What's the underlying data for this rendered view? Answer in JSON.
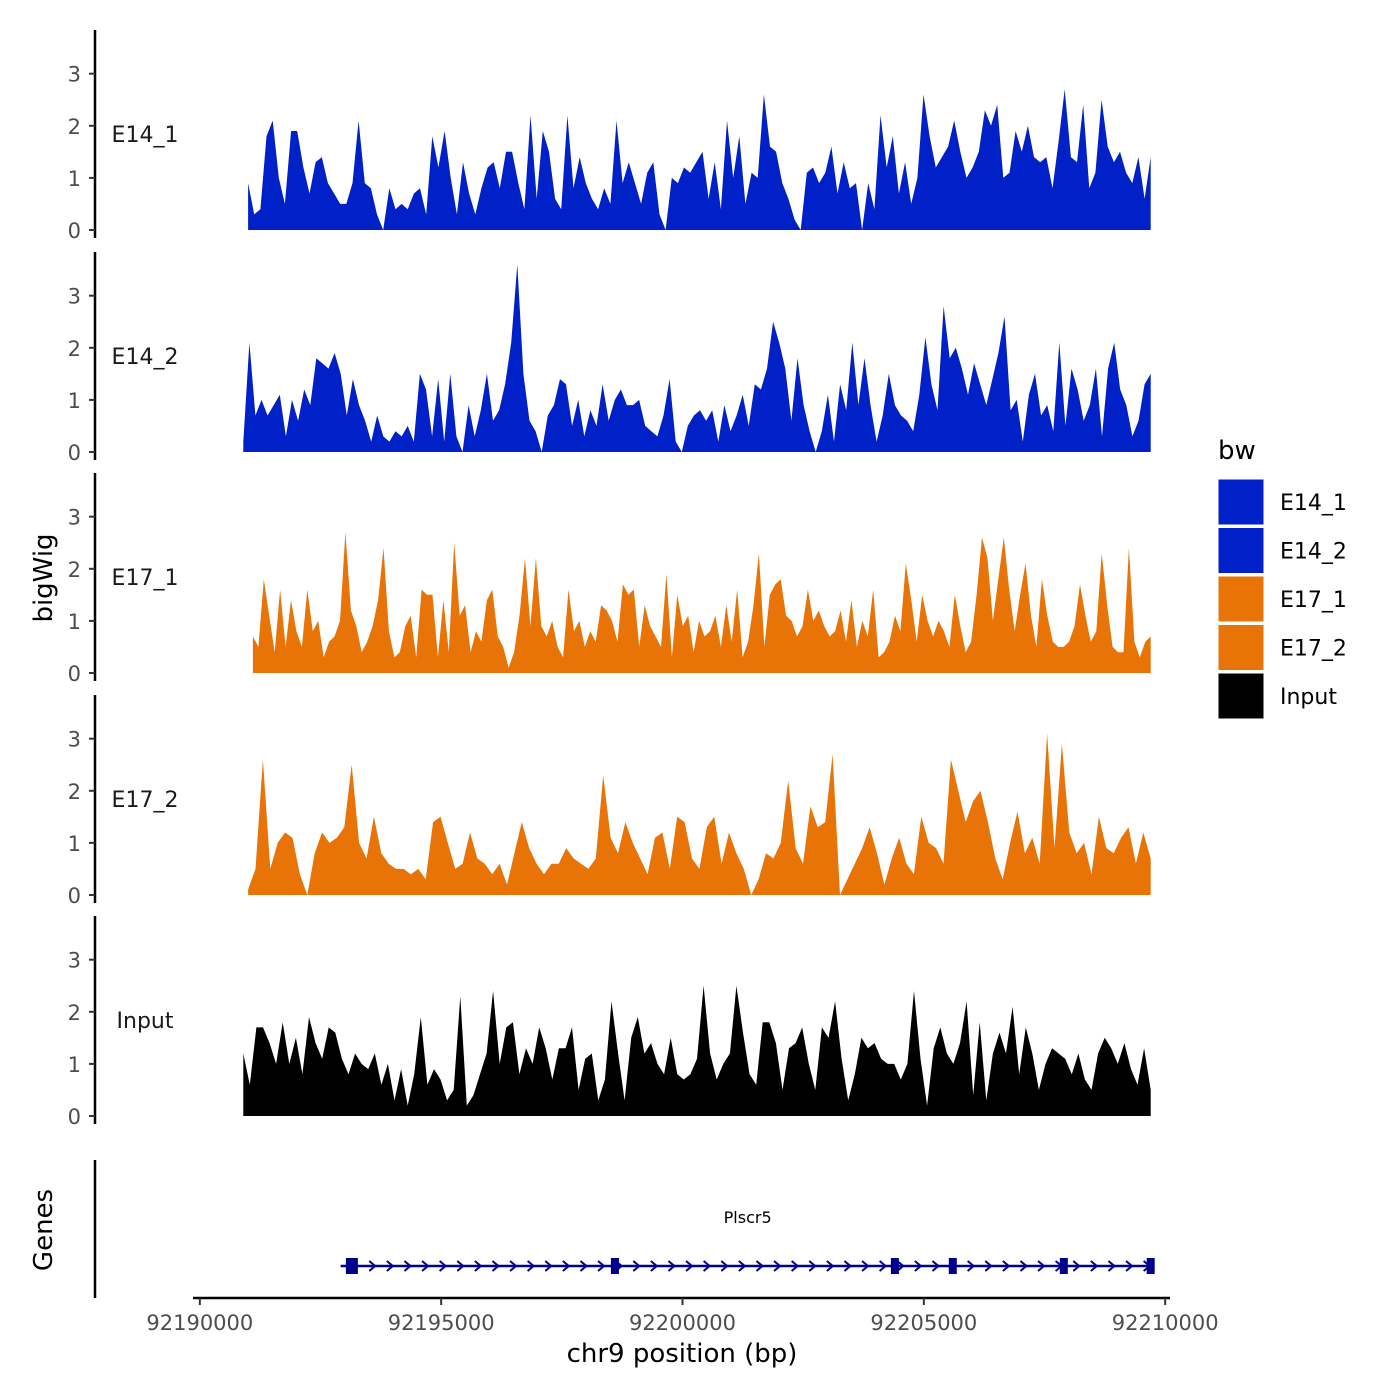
{
  "chart_data": {
    "type": "area",
    "title": "",
    "ylabel": "bigWig",
    "xlabel": "chr9 position (bp)",
    "xlim": [
      92189900,
      92210100
    ],
    "ylim": [
      0,
      3.8
    ],
    "y_ticks": [
      0,
      1,
      2,
      3
    ],
    "x_ticks": [
      92190000,
      92195000,
      92200000,
      92205000,
      92210000
    ],
    "x_tick_labels": [
      "92190000",
      "92195000",
      "92200000",
      "92205000",
      "92210000"
    ],
    "legend": {
      "title": "bw",
      "position": "right",
      "entries": [
        {
          "label": "E14_1",
          "color": "#0020C8"
        },
        {
          "label": "E14_2",
          "color": "#0020C8"
        },
        {
          "label": "E17_1",
          "color": "#E87306"
        },
        {
          "label": "E17_2",
          "color": "#E87306"
        },
        {
          "label": "Input",
          "color": "#000000"
        }
      ]
    },
    "series": [
      {
        "name": "E14_1",
        "color": "#0020C8",
        "x_start": 92191000,
        "x_end": 92209700,
        "values": [
          0.9,
          0.3,
          0.4,
          1.8,
          2.1,
          1.0,
          0.5,
          1.9,
          1.9,
          1.2,
          0.7,
          1.3,
          1.4,
          0.9,
          0.7,
          0.5,
          0.5,
          0.9,
          2.1,
          0.9,
          0.8,
          0.3,
          0,
          0.8,
          0.4,
          0.5,
          0.4,
          0.7,
          0.8,
          0.3,
          1.8,
          1.2,
          1.9,
          1.0,
          0.3,
          1.3,
          0.7,
          0.3,
          0.8,
          1.2,
          1.3,
          0.8,
          1.5,
          1.5,
          0.9,
          0.4,
          2.2,
          0.6,
          1.9,
          1.5,
          0.6,
          0.4,
          2.2,
          0.8,
          1.4,
          0.9,
          0.6,
          0.4,
          0.8,
          0.5,
          2.1,
          0.9,
          1.3,
          0.9,
          0.5,
          1.1,
          1.3,
          0.3,
          0,
          1.0,
          0.9,
          1.2,
          1.1,
          1.3,
          1.5,
          0.6,
          1.3,
          0.4,
          2.1,
          1.0,
          1.8,
          0.5,
          1.1,
          1.0,
          2.6,
          1.6,
          1.5,
          0.9,
          0.6,
          0.2,
          0,
          1.1,
          1.2,
          0.9,
          1.1,
          1.6,
          0.7,
          1.3,
          0.8,
          0.9,
          0,
          0.9,
          0.4,
          2.2,
          1.2,
          1.8,
          0.7,
          1.3,
          0.5,
          1.0,
          2.6,
          1.8,
          1.2,
          1.4,
          1.6,
          2.1,
          1.5,
          1.0,
          1.2,
          1.5,
          2.3,
          2.0,
          2.4,
          1.0,
          1.1,
          1.9,
          1.5,
          2.0,
          1.4,
          1.3,
          1.4,
          0.8,
          1.7,
          2.7,
          1.4,
          1.3,
          2.4,
          0.8,
          1.1,
          2.5,
          1.6,
          1.3,
          1.5,
          1.1,
          0.9,
          1.4,
          0.6,
          1.4
        ]
      },
      {
        "name": "E14_2",
        "color": "#0020C8",
        "x_start": 92190900,
        "x_end": 92209700,
        "values": [
          0.2,
          2.1,
          0.7,
          1.0,
          0.7,
          0.9,
          1.1,
          0.3,
          1.0,
          0.6,
          1.2,
          0.9,
          1.8,
          1.7,
          1.6,
          1.9,
          1.5,
          0.7,
          1.4,
          0.9,
          0.6,
          0.2,
          0.7,
          0.3,
          0.2,
          0.4,
          0.3,
          0.5,
          0.2,
          1.5,
          1.2,
          0.3,
          1.4,
          0.2,
          1.5,
          0.3,
          0,
          0.9,
          0.3,
          0.8,
          1.5,
          0.6,
          0.8,
          1.3,
          2.1,
          3.6,
          1.5,
          0.6,
          0.4,
          0,
          0.7,
          0.9,
          1.4,
          1.3,
          0.5,
          1.0,
          0.3,
          0.8,
          0.5,
          1.3,
          0.6,
          1.0,
          1.2,
          0.9,
          0.9,
          1.0,
          0.5,
          0.4,
          0.3,
          0.7,
          1.4,
          0.2,
          0,
          0.5,
          0.7,
          0.8,
          0.6,
          0.8,
          0.2,
          0.9,
          0.4,
          0.7,
          1.1,
          0.5,
          1.3,
          1.2,
          1.6,
          2.5,
          2.1,
          1.6,
          0.6,
          1.8,
          0.9,
          0.4,
          0,
          0.4,
          1.1,
          0.2,
          1.3,
          0.8,
          2.1,
          0.9,
          1.8,
          0.9,
          0.2,
          0.7,
          1.5,
          0.9,
          0.7,
          0.6,
          0.4,
          1.1,
          2.2,
          1.3,
          0.8,
          2.8,
          1.8,
          2.0,
          1.6,
          1.1,
          1.7,
          1.3,
          0.9,
          1.4,
          1.9,
          2.6,
          0.8,
          1.0,
          0.2,
          1.1,
          1.5,
          0.7,
          0.9,
          0.4,
          2.1,
          0.5,
          1.6,
          1.2,
          0.6,
          0.9,
          1.6,
          0.3,
          1.6,
          2.1,
          1.2,
          0.9,
          0.3,
          0.6,
          1.3,
          1.5
        ]
      },
      {
        "name": "E17_1",
        "color": "#E87306",
        "x_start": 92191100,
        "x_end": 92209700,
        "values": [
          0.7,
          0.5,
          1.8,
          1.1,
          0.4,
          1.6,
          0.5,
          1.4,
          0.8,
          0.5,
          1.6,
          0.8,
          1.0,
          0.3,
          0.6,
          0.7,
          1.0,
          2.7,
          1.2,
          0.9,
          0.4,
          0.6,
          0.9,
          1.4,
          2.4,
          0.8,
          0.3,
          0.4,
          0.9,
          1.1,
          0.3,
          1.6,
          1.5,
          1.5,
          0.3,
          1.4,
          0.4,
          2.5,
          1.1,
          1.3,
          0.4,
          0.8,
          0.6,
          1.4,
          1.6,
          0.7,
          0.5,
          0.1,
          0.4,
          1.1,
          2.2,
          0.9,
          2.2,
          0.9,
          0.7,
          1.0,
          0.5,
          0.3,
          1.6,
          0.8,
          1.0,
          0.5,
          0.8,
          0.6,
          1.3,
          1.2,
          1.0,
          0.6,
          1.7,
          1.5,
          1.6,
          0.5,
          1.3,
          0.9,
          0.7,
          0.5,
          1.9,
          0.3,
          1.5,
          0.9,
          1.1,
          0.4,
          1.0,
          0.7,
          0.8,
          1.1,
          0.5,
          1.3,
          0.6,
          1.6,
          0.3,
          0.6,
          1.3,
          2.3,
          0.5,
          1.5,
          1.7,
          1.8,
          1.1,
          1.0,
          0.7,
          0.9,
          1.6,
          1.0,
          1.2,
          0.9,
          0.7,
          0.8,
          1.2,
          0.6,
          1.4,
          0.5,
          1.0,
          0.7,
          1.6,
          0.3,
          0.4,
          0.6,
          1.1,
          0.8,
          2.1,
          1.4,
          0.6,
          1.5,
          1.0,
          0.7,
          1.0,
          0.8,
          0.5,
          1.5,
          0.9,
          0.4,
          0.6,
          1.5,
          2.6,
          2.2,
          1.0,
          1.8,
          2.6,
          1.6,
          0.8,
          1.5,
          2.1,
          1.1,
          0.5,
          1.8,
          1.1,
          0.6,
          0.5,
          0.5,
          0.6,
          0.9,
          1.7,
          1.1,
          0.6,
          0.8,
          2.3,
          1.3,
          0.5,
          0.4,
          0.4,
          2.4,
          0.6,
          0.3,
          0.6,
          0.7
        ]
      },
      {
        "name": "E17_2",
        "color": "#E87306",
        "x_start": 92191000,
        "x_end": 92209700,
        "values": [
          0.1,
          0.5,
          2.6,
          0.5,
          1.0,
          1.2,
          1.1,
          0.4,
          0,
          0.8,
          1.2,
          1.0,
          1.1,
          1.3,
          2.5,
          1.0,
          0.7,
          1.5,
          0.8,
          0.6,
          0.5,
          0.5,
          0.4,
          0.5,
          0.3,
          1.4,
          1.5,
          1.0,
          0.5,
          0.6,
          1.2,
          0.7,
          0.6,
          0.4,
          0.6,
          0.2,
          0.8,
          1.4,
          0.9,
          0.6,
          0.4,
          0.6,
          0.6,
          0.9,
          0.7,
          0.6,
          0.5,
          0.7,
          2.3,
          1.1,
          0.8,
          1.4,
          1.0,
          0.7,
          0.4,
          1.1,
          1.2,
          0.5,
          1.5,
          1.4,
          0.7,
          0.5,
          1.3,
          1.5,
          0.6,
          1.2,
          0.8,
          0.5,
          0,
          0.3,
          0.8,
          0.7,
          1.0,
          2.2,
          0.9,
          0.6,
          1.7,
          1.3,
          1.4,
          2.7,
          0,
          0.3,
          0.6,
          0.9,
          1.3,
          0.8,
          0.2,
          0.7,
          1.1,
          0.6,
          0.4,
          1.5,
          1.0,
          0.9,
          0.6,
          2.6,
          2.0,
          1.4,
          1.8,
          2.0,
          1.4,
          0.7,
          0.3,
          1.0,
          1.6,
          0.8,
          1.1,
          0.6,
          3.1,
          0.9,
          2.9,
          1.2,
          0.8,
          1.0,
          0.4,
          1.5,
          0.9,
          0.8,
          1.1,
          1.3,
          0.6,
          1.2,
          0.7
        ]
      },
      {
        "name": "Input",
        "color": "#000000",
        "x_start": 92190900,
        "x_end": 92209700,
        "values": [
          1.2,
          0.6,
          1.7,
          1.7,
          1.4,
          1.0,
          1.8,
          1.0,
          1.5,
          0.8,
          1.9,
          1.4,
          1.1,
          1.7,
          1.6,
          1.1,
          0.8,
          1.2,
          1.0,
          0.9,
          1.2,
          0.6,
          1.0,
          0.3,
          0.9,
          0.2,
          0.8,
          1.9,
          0.6,
          0.9,
          0.7,
          0.3,
          0.5,
          2.3,
          0.2,
          0.4,
          0.8,
          1.2,
          2.4,
          1.0,
          1.7,
          1.8,
          0.8,
          1.3,
          1.0,
          1.7,
          1.3,
          0.7,
          1.3,
          1.3,
          1.7,
          0.5,
          1.1,
          1.2,
          0.3,
          0.7,
          2.2,
          1.2,
          0.3,
          1.5,
          1.9,
          1.2,
          1.4,
          1.0,
          0.8,
          1.5,
          0.8,
          0.7,
          0.8,
          1.1,
          2.5,
          1.2,
          0.7,
          1.0,
          1.2,
          2.5,
          1.6,
          0.8,
          0.6,
          1.8,
          1.8,
          1.4,
          0.5,
          1.3,
          1.4,
          1.7,
          1.0,
          0.5,
          1.7,
          1.5,
          2.2,
          1.1,
          0.3,
          0.8,
          1.5,
          1.3,
          1.4,
          1.1,
          1.0,
          1.0,
          0.7,
          1.0,
          2.4,
          1.1,
          0.2,
          1.3,
          1.7,
          1.2,
          1.0,
          1.4,
          2.2,
          0.4,
          1.8,
          0.3,
          1.2,
          1.6,
          1.2,
          2.1,
          0.8,
          1.7,
          1.2,
          0.5,
          1.0,
          1.3,
          1.2,
          1.1,
          0.8,
          1.2,
          0.7,
          0.5,
          1.2,
          1.5,
          1.3,
          1.0,
          1.4,
          0.9,
          0.6,
          1.3,
          0.5
        ]
      }
    ],
    "genes": {
      "panel_label": "Genes",
      "items": [
        {
          "name": "Plscr5",
          "start": 92193000,
          "end": 92209700,
          "strand": "+",
          "exons": [
            92193150,
            92198600,
            92204400,
            92205600,
            92207900,
            92209700
          ]
        }
      ]
    }
  }
}
